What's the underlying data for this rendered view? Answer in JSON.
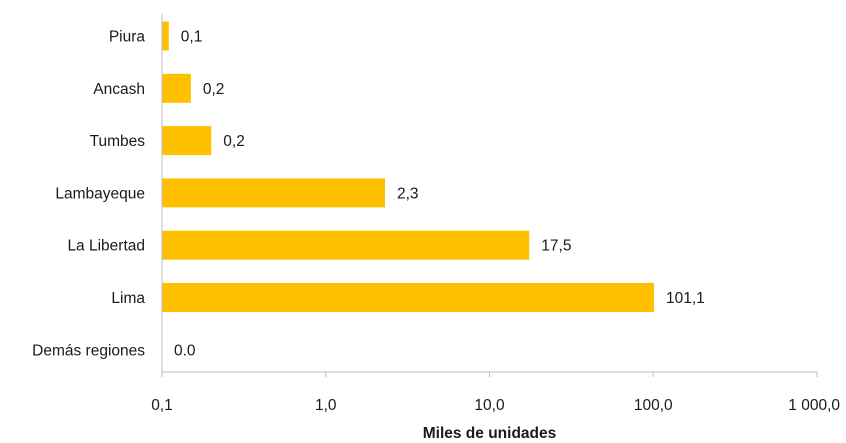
{
  "chart_data": {
    "type": "bar",
    "orientation": "horizontal",
    "xscale": "log",
    "xlim": [
      0.1,
      1000
    ],
    "xlabel": "Miles de unidades",
    "ylabel": "",
    "title": "",
    "grid": false,
    "legend": "none",
    "bar_color": "#FFC000",
    "categories": [
      "Piura",
      "Ancash",
      "Tumbes",
      "Lambayeque",
      "La Libertad",
      "Lima",
      "Demás regiones"
    ],
    "values": [
      0.11,
      0.15,
      0.2,
      2.3,
      17.5,
      101.1,
      0.0
    ],
    "data_labels": [
      "0,1",
      "0,2",
      "0,2",
      "2,3",
      "17,5",
      "101,1",
      "0.0"
    ],
    "x_ticks": [
      0.1,
      1,
      10,
      100,
      1000
    ],
    "x_tick_labels": [
      "0,1",
      "1,0",
      "10,0",
      "100,0",
      "1 000,0"
    ]
  }
}
